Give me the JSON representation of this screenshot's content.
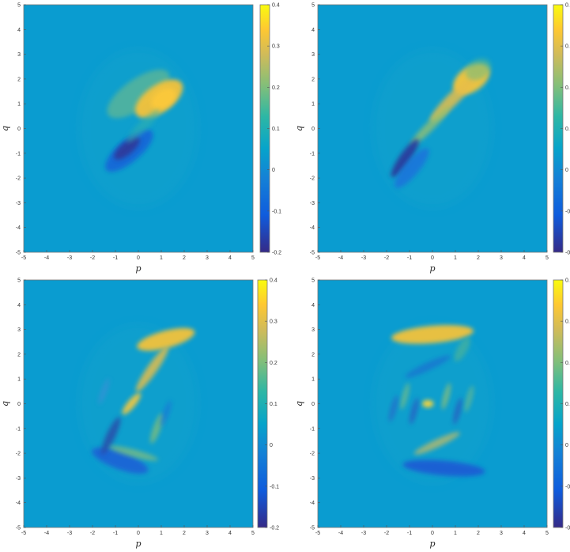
{
  "chart_data": [
    {
      "type": "heatmap",
      "title": "",
      "xlabel": "p",
      "ylabel": "q",
      "xlim": [
        -5,
        5
      ],
      "ylim": [
        -5,
        5
      ],
      "xticks": [
        "-5",
        "-4",
        "-3",
        "-2",
        "-1",
        "0",
        "1",
        "2",
        "3",
        "4",
        "5"
      ],
      "yticks": [
        "5",
        "4",
        "3",
        "2",
        "1",
        "0",
        "-1",
        "-2",
        "-3",
        "-4",
        "-5"
      ],
      "colorbar": {
        "range": [
          -0.2,
          0.4
        ],
        "ticks": [
          "0.4",
          "0.3",
          "0.2",
          "0.1",
          "0",
          "-0.1",
          "-0.2"
        ],
        "colormap": "parula"
      },
      "features": [
        {
          "p": 0.9,
          "q": 1.2,
          "value": 0.35
        },
        {
          "p": -0.6,
          "q": -0.8,
          "value": -0.2
        }
      ]
    },
    {
      "type": "heatmap",
      "title": "",
      "xlabel": "p",
      "ylabel": "q",
      "xlim": [
        -5,
        5
      ],
      "ylim": [
        -5,
        5
      ],
      "xticks": [
        "-5",
        "-4",
        "-3",
        "-2",
        "-1",
        "0",
        "1",
        "2",
        "3",
        "4",
        "5"
      ],
      "yticks": [
        "5",
        "4",
        "3",
        "2",
        "1",
        "0",
        "-1",
        "-2",
        "-3",
        "-4",
        "-5"
      ],
      "colorbar": {
        "range": [
          -0.2,
          0.4
        ],
        "ticks": [
          "0.",
          "0.",
          "0.",
          "0.",
          "0",
          "-0.",
          "-0."
        ],
        "colormap": "parula"
      },
      "features": [
        {
          "p": 1.7,
          "q": 2.0,
          "value": 0.35
        },
        {
          "p": -1.3,
          "q": -1.3,
          "value": -0.2
        }
      ]
    },
    {
      "type": "heatmap",
      "title": "",
      "xlabel": "p",
      "ylabel": "q",
      "xlim": [
        -5,
        5
      ],
      "ylim": [
        -5,
        5
      ],
      "xticks": [
        "-5",
        "-4",
        "-3",
        "-2",
        "-1",
        "0",
        "1",
        "2",
        "3",
        "4",
        "5"
      ],
      "yticks": [
        "5",
        "4",
        "3",
        "2",
        "1",
        "0",
        "-1",
        "-2",
        "-3",
        "-4",
        "-5"
      ],
      "colorbar": {
        "range": [
          -0.2,
          0.4
        ],
        "ticks": [
          "0.4",
          "0.3",
          "0.2",
          "0.1",
          "0",
          "-0.1",
          "-0.2"
        ],
        "colormap": "parula"
      },
      "features": [
        {
          "p": 1.3,
          "q": 2.5,
          "value": 0.33
        },
        {
          "p": -0.3,
          "q": 0.0,
          "value": 0.3
        },
        {
          "p": -0.8,
          "q": -2.3,
          "value": -0.15
        }
      ]
    },
    {
      "type": "heatmap",
      "title": "",
      "xlabel": "p",
      "ylabel": "q",
      "xlim": [
        -5,
        5
      ],
      "ylim": [
        -5,
        5
      ],
      "xticks": [
        "-5",
        "-4",
        "-3",
        "-2",
        "-1",
        "0",
        "1",
        "2",
        "3",
        "4",
        "5"
      ],
      "yticks": [
        "5",
        "4",
        "3",
        "2",
        "1",
        "0",
        "-1",
        "-2",
        "-3",
        "-4",
        "-5"
      ],
      "colorbar": {
        "range": [
          -0.2,
          0.4
        ],
        "ticks": [
          "0.",
          "0.",
          "0.",
          "0.",
          "0",
          "-0",
          "-0"
        ],
        "colormap": "parula"
      },
      "features": [
        {
          "p": 0.0,
          "q": 2.8,
          "value": 0.32
        },
        {
          "p": -0.2,
          "q": 0.0,
          "value": 0.35
        },
        {
          "p": 0.5,
          "q": -2.6,
          "value": -0.12
        }
      ]
    }
  ]
}
